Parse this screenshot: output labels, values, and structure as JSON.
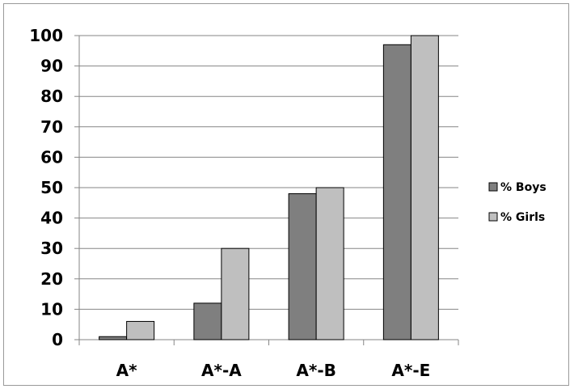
{
  "chart_data": {
    "type": "bar",
    "title": "",
    "xlabel": "",
    "ylabel": "",
    "categories": [
      "A*",
      "A*-A",
      "A*-B",
      "A*-E"
    ],
    "series": [
      {
        "name": "% Boys",
        "values": [
          1,
          12,
          48,
          97
        ],
        "color": "#7f7f7f"
      },
      {
        "name": "% Girls",
        "values": [
          6,
          30,
          50,
          100
        ],
        "color": "#bfbfbf"
      }
    ],
    "ylim": [
      0,
      100
    ],
    "yticks": [
      0,
      10,
      20,
      30,
      40,
      50,
      60,
      70,
      80,
      90,
      100
    ],
    "grid": true,
    "legend_position": "right",
    "colors": {
      "boys": "#7f7f7f",
      "girls": "#bfbfbf",
      "bar_border": "#000000",
      "gridline": "#868686",
      "frame": "#9a9a9a"
    }
  }
}
